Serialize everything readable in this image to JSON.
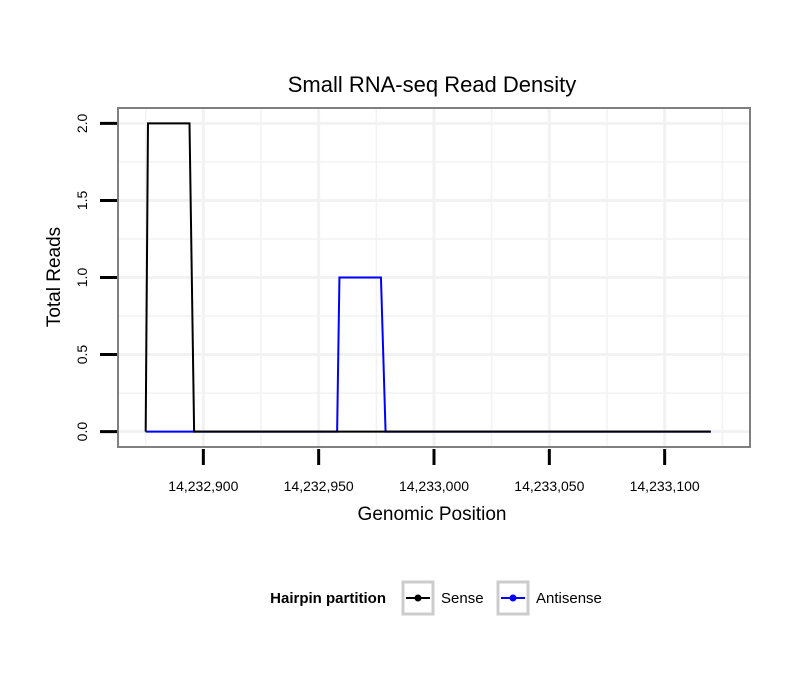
{
  "chart_data": {
    "type": "line",
    "title": "Small RNA-seq Read Density",
    "xlabel": "Genomic Position",
    "ylabel": "Total Reads",
    "xlim": [
      14232863,
      14233137
    ],
    "ylim": [
      -0.1,
      2.1
    ],
    "x_ticks": [
      14232900,
      14232950,
      14233000,
      14233050,
      14233100
    ],
    "x_tick_labels": [
      "14,232,900",
      "14,232,950",
      "14,233,000",
      "14,233,050",
      "14,233,100"
    ],
    "y_ticks": [
      0.0,
      0.5,
      1.0,
      1.5,
      2.0
    ],
    "y_tick_labels": [
      "0.0",
      "0.5",
      "1.0",
      "1.5",
      "2.0"
    ],
    "grid": true,
    "legend": {
      "title": "Hairpin partition",
      "position": "bottom"
    },
    "series": [
      {
        "name": "Sense",
        "color": "#000000",
        "x": [
          14232875,
          14232876,
          14232894,
          14232896,
          14233120
        ],
        "y": [
          0,
          2,
          2,
          0,
          0
        ]
      },
      {
        "name": "Antisense",
        "color": "#0000ff",
        "x": [
          14232875,
          14232958,
          14232959,
          14232977,
          14232979,
          14233120
        ],
        "y": [
          0,
          0,
          1,
          1,
          0,
          0
        ]
      }
    ]
  }
}
